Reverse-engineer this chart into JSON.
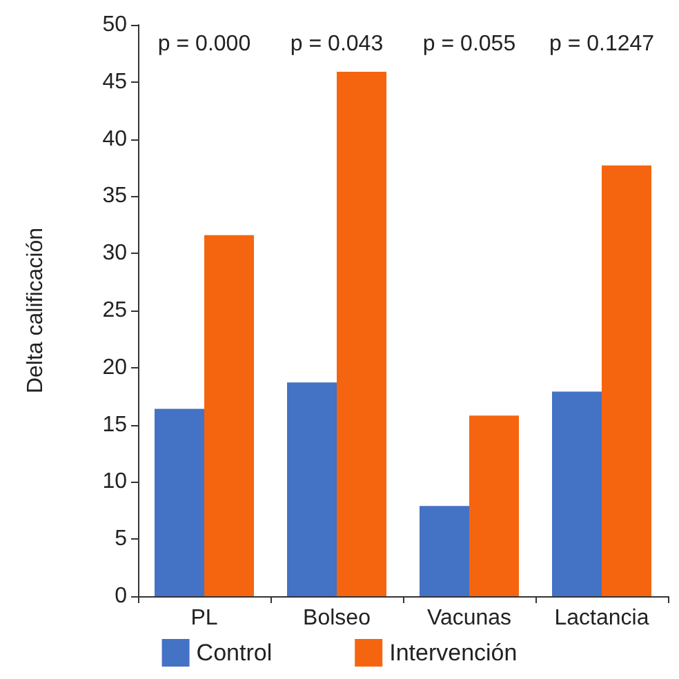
{
  "chart_data": {
    "type": "bar",
    "ylabel": "Delta calificación",
    "categories": [
      "PL",
      "Bolseo",
      "Vacunas",
      "Lactancia"
    ],
    "series": [
      {
        "name": "Control",
        "color": "#4472c4",
        "values": [
          16.4,
          18.7,
          7.9,
          17.9
        ]
      },
      {
        "name": "Intervención",
        "color": "#f5650f",
        "values": [
          31.6,
          45.9,
          15.8,
          37.7
        ]
      }
    ],
    "ylim": [
      0,
      50
    ],
    "yticks": [
      0,
      5,
      10,
      15,
      20,
      25,
      30,
      35,
      40,
      45,
      50
    ],
    "grid": false,
    "legend": "bottom",
    "annotations": [
      "p = 0.000",
      "p = 0.043",
      "p = 0.055",
      "p = 0.1247"
    ]
  }
}
